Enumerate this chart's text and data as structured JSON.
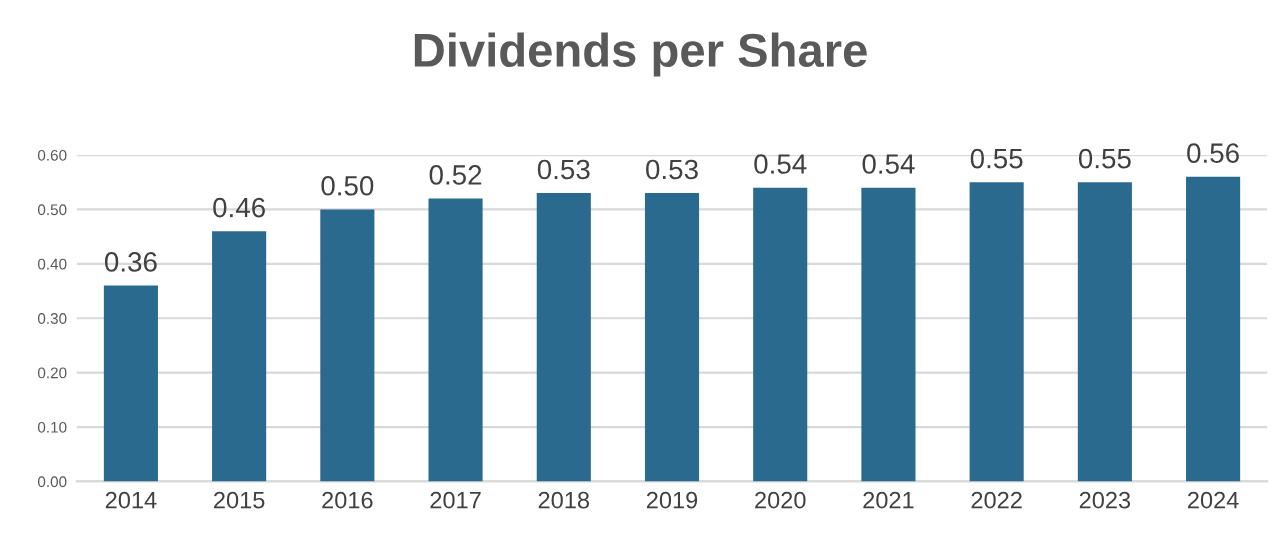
{
  "chart_data": {
    "type": "bar",
    "title": "Dividends per Share",
    "categories": [
      "2014",
      "2015",
      "2016",
      "2017",
      "2018",
      "2019",
      "2020",
      "2021",
      "2022",
      "2023",
      "2024"
    ],
    "values": [
      0.36,
      0.46,
      0.5,
      0.52,
      0.53,
      0.53,
      0.54,
      0.54,
      0.55,
      0.55,
      0.56
    ],
    "value_labels": [
      "0.36",
      "0.46",
      "0.50",
      "0.52",
      "0.53",
      "0.53",
      "0.54",
      "0.54",
      "0.55",
      "0.55",
      "0.56"
    ],
    "color": "#2a6a8e",
    "ylim": [
      0,
      0.6
    ],
    "yticks": [
      {
        "value": 0,
        "label": "0.00"
      },
      {
        "value": 0.1,
        "label": "0.10"
      },
      {
        "value": 0.2,
        "label": "0.20"
      },
      {
        "value": 0.3,
        "label": "0.30"
      },
      {
        "value": 0.4,
        "label": "0.40"
      },
      {
        "value": 0.5,
        "label": "0.50"
      },
      {
        "value": 0.6,
        "label": "0.60"
      }
    ],
    "grid": "y"
  }
}
